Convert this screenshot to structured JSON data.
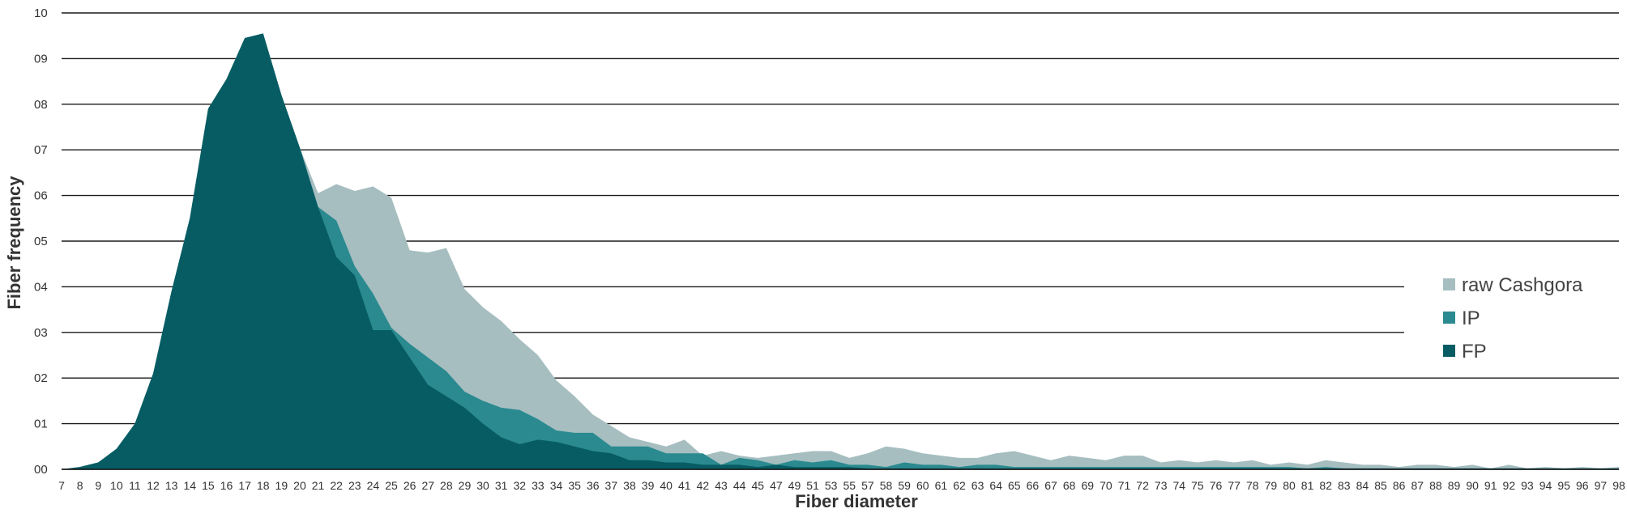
{
  "chart_data": {
    "type": "area",
    "xlabel": "Fiber diameter",
    "ylabel": "Fiber frequency",
    "ylim": [
      0,
      10
    ],
    "yticks": [
      0,
      1,
      2,
      3,
      4,
      5,
      6,
      7,
      8,
      9,
      10
    ],
    "ytick_labels": [
      "00",
      "01",
      "02",
      "03",
      "04",
      "05",
      "06",
      "07",
      "08",
      "09",
      "10"
    ],
    "grid": true,
    "legend_position": "right",
    "x": [
      7,
      8,
      9,
      10,
      11,
      12,
      13,
      14,
      15,
      16,
      17,
      18,
      19,
      20,
      21,
      22,
      23,
      24,
      25,
      26,
      27,
      28,
      29,
      30,
      31,
      32,
      33,
      34,
      35,
      36,
      37,
      38,
      39,
      40,
      41,
      42,
      43,
      44,
      45,
      47,
      49,
      51,
      53,
      55,
      57,
      58,
      59,
      60,
      61,
      62,
      63,
      64,
      65,
      66,
      67,
      68,
      69,
      70,
      71,
      72,
      73,
      74,
      75,
      76,
      77,
      78,
      79,
      80,
      81,
      82,
      83,
      84,
      85,
      86,
      87,
      88,
      89,
      90,
      91,
      92,
      93,
      94,
      95,
      96,
      97,
      98
    ],
    "series": [
      {
        "name": "raw Cashgora",
        "color": "#a6bec0",
        "values": [
          0,
          0.05,
          0.15,
          0.45,
          1.0,
          2.1,
          3.9,
          5.5,
          7.9,
          8.55,
          9.45,
          9.55,
          8.2,
          7.05,
          6.05,
          6.25,
          6.1,
          6.2,
          5.95,
          4.8,
          4.75,
          4.85,
          3.95,
          3.55,
          3.25,
          2.85,
          2.5,
          1.95,
          1.6,
          1.2,
          0.95,
          0.7,
          0.6,
          0.5,
          0.65,
          0.3,
          0.4,
          0.3,
          0.25,
          0.3,
          0.35,
          0.4,
          0.4,
          0.25,
          0.35,
          0.5,
          0.45,
          0.35,
          0.3,
          0.25,
          0.25,
          0.35,
          0.4,
          0.3,
          0.2,
          0.3,
          0.25,
          0.2,
          0.3,
          0.3,
          0.15,
          0.2,
          0.15,
          0.2,
          0.15,
          0.2,
          0.1,
          0.15,
          0.1,
          0.2,
          0.15,
          0.1,
          0.1,
          0.05,
          0.1,
          0.1,
          0.05,
          0.1,
          0.02,
          0.1,
          0.02,
          0.05,
          0.02,
          0.05,
          0.02,
          0.05
        ]
      },
      {
        "name": "IP",
        "color": "#2a8a90",
        "values": [
          0,
          0.05,
          0.15,
          0.45,
          1.0,
          2.1,
          3.9,
          5.5,
          7.9,
          8.55,
          9.45,
          9.55,
          8.2,
          7.05,
          5.75,
          5.45,
          4.45,
          3.85,
          3.1,
          2.75,
          2.45,
          2.15,
          1.7,
          1.5,
          1.35,
          1.3,
          1.1,
          0.85,
          0.8,
          0.8,
          0.5,
          0.5,
          0.5,
          0.35,
          0.35,
          0.35,
          0.1,
          0.25,
          0.2,
          0.1,
          0.2,
          0.15,
          0.2,
          0.1,
          0.1,
          0.05,
          0.15,
          0.1,
          0.1,
          0.05,
          0.1,
          0.1,
          0.05,
          0.05,
          0.05,
          0.05,
          0.05,
          0.05,
          0.05,
          0.05,
          0.05,
          0.05,
          0.05,
          0.05,
          0.05,
          0.05,
          0.05,
          0.05,
          0.02,
          0.05,
          0.02,
          0.02,
          0.02,
          0.02,
          0.02,
          0.02,
          0.02,
          0.02,
          0.02,
          0.02,
          0.02,
          0.02,
          0.02,
          0.02,
          0.02,
          0.02
        ]
      },
      {
        "name": "FP",
        "color": "#075c63",
        "values": [
          0,
          0.05,
          0.15,
          0.45,
          1.0,
          2.1,
          3.9,
          5.5,
          7.9,
          8.55,
          9.45,
          9.55,
          8.2,
          7.05,
          5.75,
          4.65,
          4.25,
          3.05,
          3.05,
          2.45,
          1.85,
          1.6,
          1.35,
          1.0,
          0.7,
          0.55,
          0.65,
          0.6,
          0.5,
          0.4,
          0.35,
          0.2,
          0.2,
          0.15,
          0.15,
          0.1,
          0.1,
          0.1,
          0.05,
          0.1,
          0.05,
          0.05,
          0.05,
          0.05,
          0.02,
          0.02,
          0.02,
          0.02,
          0.02,
          0.02,
          0.02,
          0.02,
          0.02,
          0.02,
          0.02,
          0.02,
          0.02,
          0.02,
          0.02,
          0.02,
          0.02,
          0.02,
          0.02,
          0.02,
          0.02,
          0.02,
          0.02,
          0.02,
          0.02,
          0.02,
          0.02,
          0.02,
          0.02,
          0.02,
          0.02,
          0.02,
          0.02,
          0.02,
          0.02,
          0.02,
          0.02,
          0.02,
          0.02,
          0.02,
          0.02,
          0.02
        ]
      }
    ]
  }
}
